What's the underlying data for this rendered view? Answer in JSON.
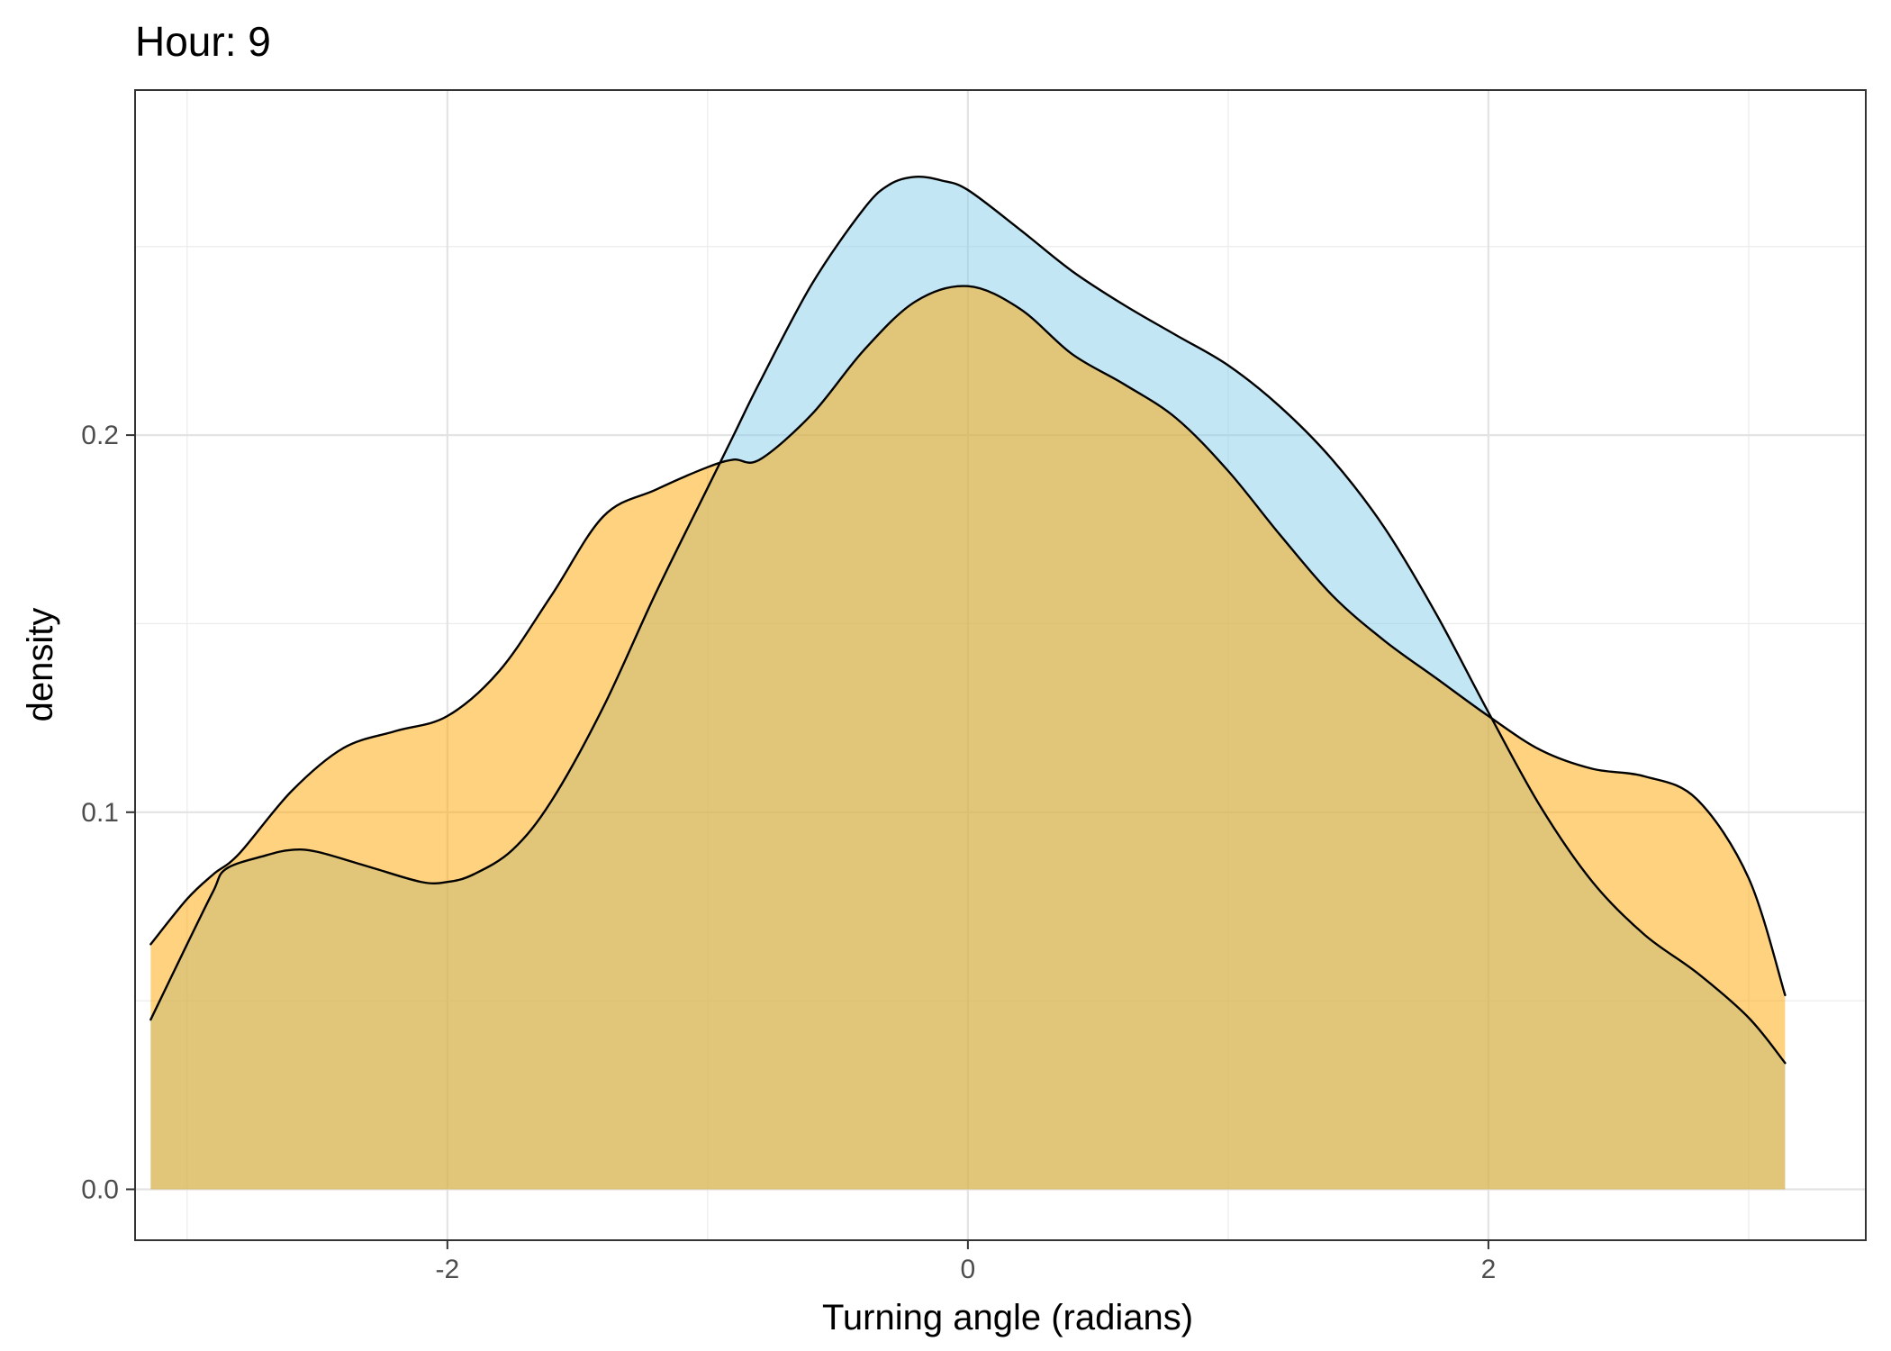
{
  "chart_data": {
    "type": "area",
    "title": "Hour: 9",
    "xlabel": "Turning angle (radians)",
    "ylabel": "density",
    "xlim": [
      -3.2,
      3.45
    ],
    "ylim": [
      -0.0135,
      0.2915
    ],
    "x_ticks": [
      -2,
      0,
      2
    ],
    "x_tick_labels": [
      "-2",
      "0",
      "2"
    ],
    "x_minor_ticks": [
      -3,
      -1,
      1,
      3
    ],
    "y_ticks": [
      0.0,
      0.1,
      0.2
    ],
    "y_tick_labels": [
      "0.0",
      "0.1",
      "0.2"
    ],
    "y_minor_ticks": [
      0.05,
      0.15,
      0.25
    ],
    "grid": true,
    "legend": "none",
    "series": [
      {
        "fill": "#87CEEB",
        "fill_opacity": 0.5,
        "stroke": "#000000",
        "x": [
          -3.14,
          -3.0,
          -2.9,
          -2.85,
          -2.7,
          -2.6,
          -2.5,
          -2.3,
          -2.1,
          -2.0,
          -1.9,
          -1.75,
          -1.6,
          -1.4,
          -1.2,
          -1.0,
          -0.9,
          -0.8,
          -0.6,
          -0.4,
          -0.3,
          -0.2,
          -0.1,
          0.0,
          0.2,
          0.4,
          0.6,
          0.8,
          1.0,
          1.2,
          1.4,
          1.6,
          1.8,
          2.0,
          2.2,
          2.4,
          2.6,
          2.8,
          3.0,
          3.14
        ],
        "values": [
          0.045,
          0.065,
          0.079,
          0.085,
          0.0885,
          0.09,
          0.0895,
          0.0855,
          0.0815,
          0.0815,
          0.0835,
          0.09,
          0.103,
          0.128,
          0.158,
          0.186,
          0.2,
          0.214,
          0.24,
          0.26,
          0.2665,
          0.2685,
          0.2675,
          0.265,
          0.2545,
          0.2435,
          0.2345,
          0.2265,
          0.2185,
          0.2075,
          0.1935,
          0.1755,
          0.1525,
          0.1265,
          0.1015,
          0.0815,
          0.0675,
          0.0575,
          0.0455,
          0.0335
        ]
      },
      {
        "fill": "#FFA500",
        "fill_opacity": 0.5,
        "stroke": "#000000",
        "x": [
          -3.14,
          -3.0,
          -2.9,
          -2.8,
          -2.6,
          -2.4,
          -2.2,
          -2.0,
          -1.8,
          -1.6,
          -1.4,
          -1.2,
          -1.0,
          -0.9,
          -0.8,
          -0.6,
          -0.4,
          -0.2,
          0.0,
          0.2,
          0.4,
          0.6,
          0.8,
          1.0,
          1.2,
          1.4,
          1.6,
          1.8,
          2.0,
          2.2,
          2.4,
          2.6,
          2.8,
          3.0,
          3.14
        ],
        "values": [
          0.065,
          0.077,
          0.0835,
          0.089,
          0.1055,
          0.117,
          0.1215,
          0.1255,
          0.1375,
          0.1575,
          0.1785,
          0.1855,
          0.1915,
          0.1935,
          0.1935,
          0.2055,
          0.2225,
          0.2355,
          0.2395,
          0.2335,
          0.2215,
          0.2135,
          0.2045,
          0.1905,
          0.1735,
          0.1575,
          0.1455,
          0.1355,
          0.1255,
          0.1165,
          0.1115,
          0.1095,
          0.1035,
          0.0825,
          0.0515
        ]
      }
    ]
  }
}
